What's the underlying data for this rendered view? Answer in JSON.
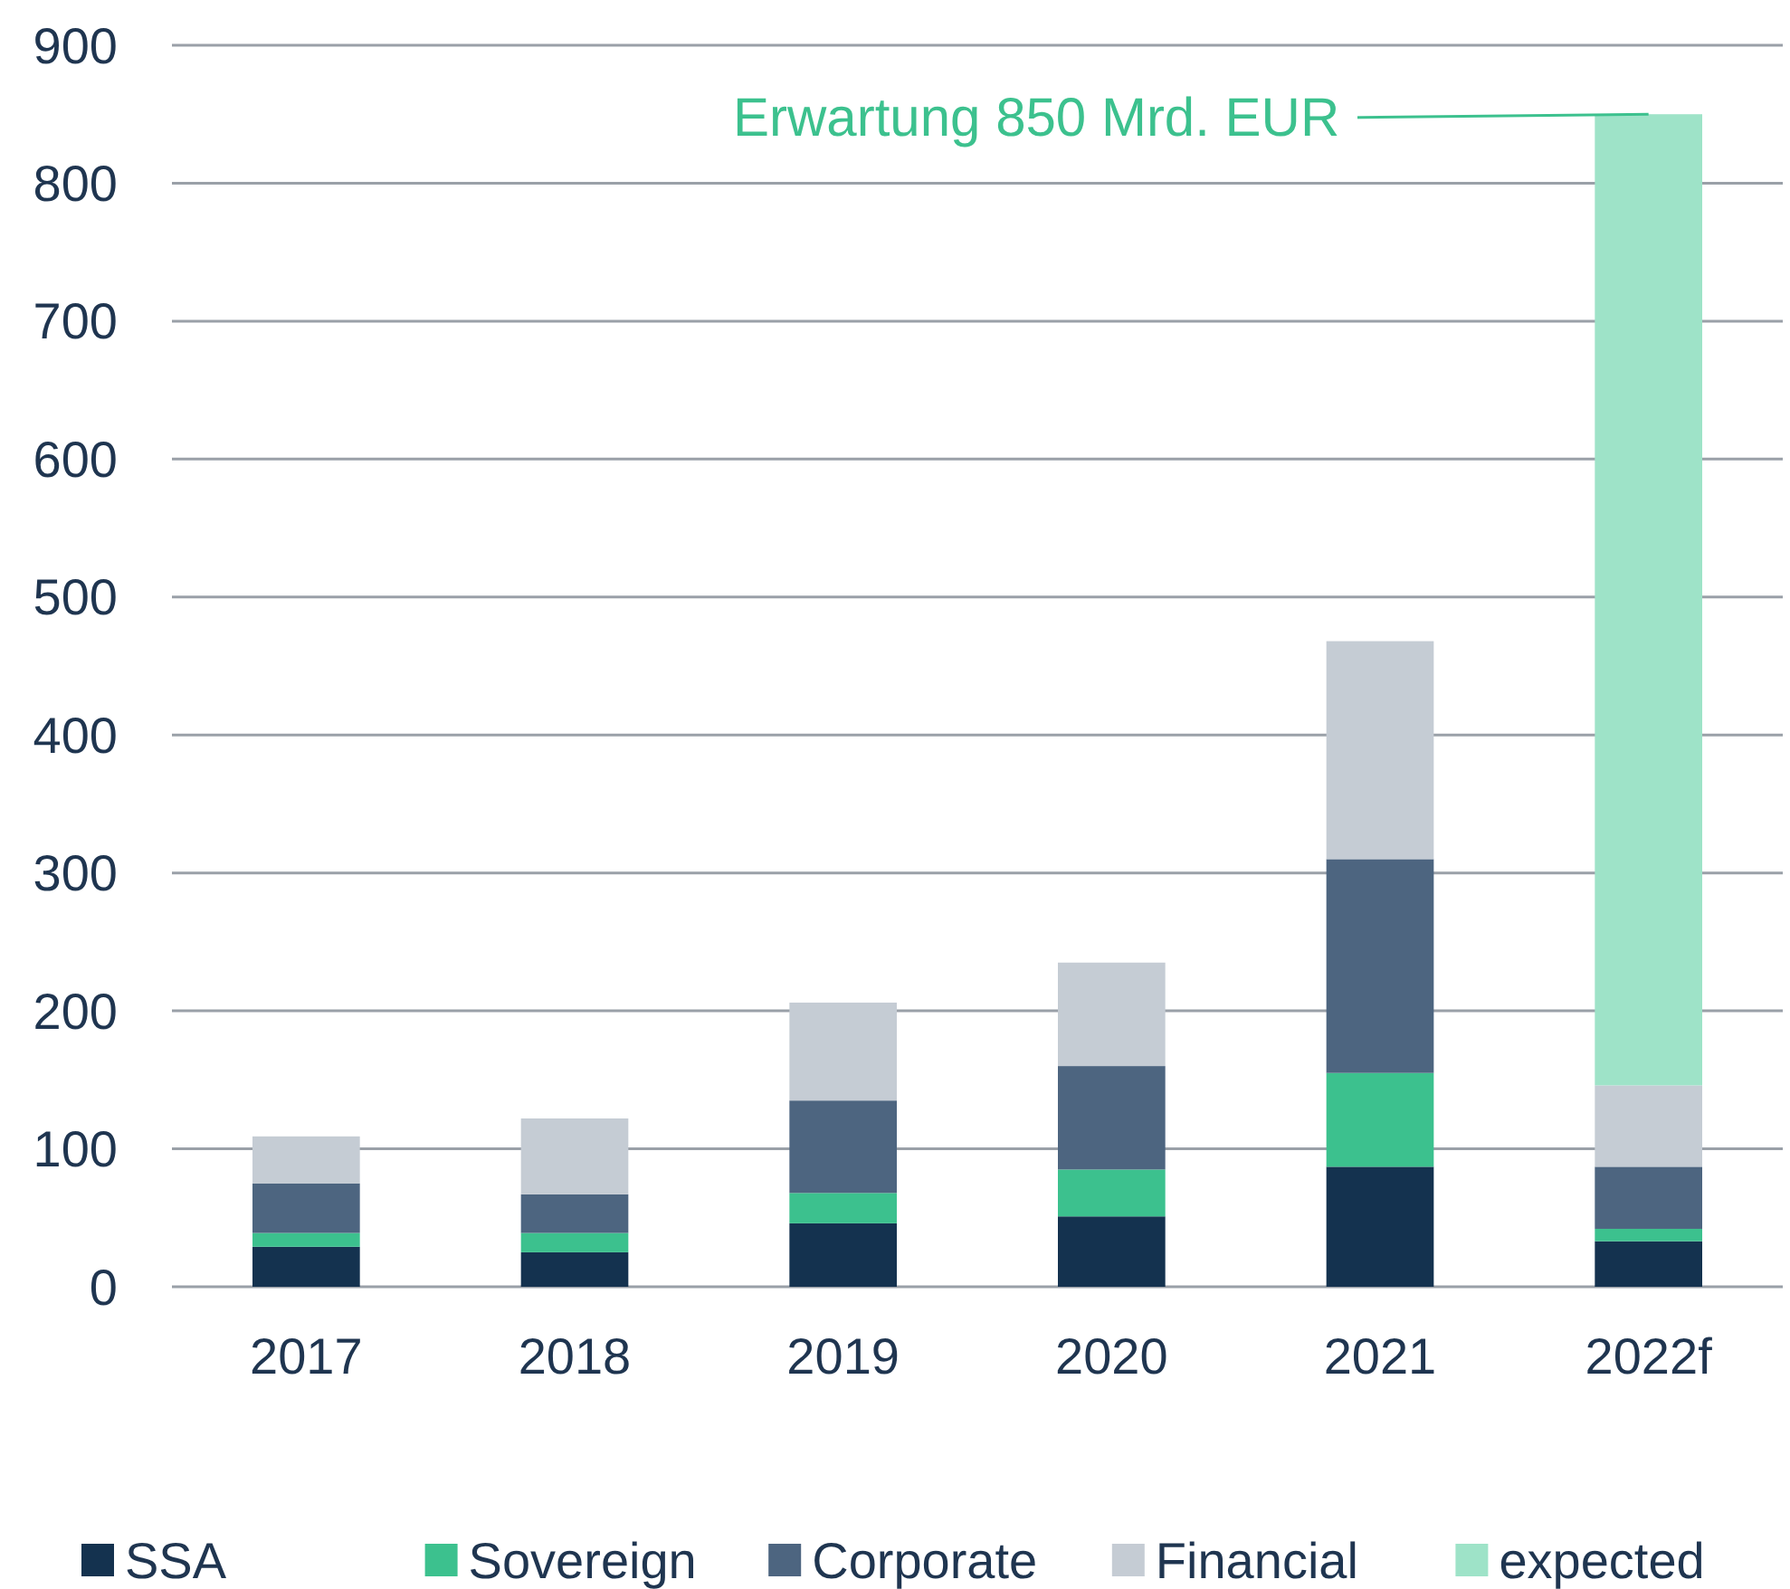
{
  "chart_data": {
    "type": "bar",
    "stacked": true,
    "categories": [
      "2017",
      "2018",
      "2019",
      "2020",
      "2021",
      "2022f"
    ],
    "series": [
      {
        "name": "SSA",
        "color": "#14324f",
        "values": [
          29,
          25,
          46,
          51,
          87,
          33
        ]
      },
      {
        "name": "Sovereign",
        "color": "#3cc18e",
        "values": [
          10,
          14,
          22,
          34,
          68,
          9
        ]
      },
      {
        "name": "Corporate",
        "color": "#4d6580",
        "values": [
          36,
          28,
          67,
          75,
          155,
          45
        ]
      },
      {
        "name": "Financial",
        "color": "#c5ccd4",
        "values": [
          34,
          55,
          71,
          75,
          158,
          59
        ]
      },
      {
        "name": "expected",
        "color": "#9ee3c8",
        "values": [
          null,
          null,
          null,
          null,
          null,
          704
        ]
      }
    ],
    "ylim": [
      0,
      900
    ],
    "yticks": [
      0,
      100,
      200,
      300,
      400,
      500,
      600,
      700,
      800,
      900
    ],
    "grid": "y",
    "legend": "bottom",
    "annotations": [
      {
        "text": "Erwartung 850 Mrd. EUR",
        "x": "2022f",
        "y": 850
      }
    ]
  }
}
